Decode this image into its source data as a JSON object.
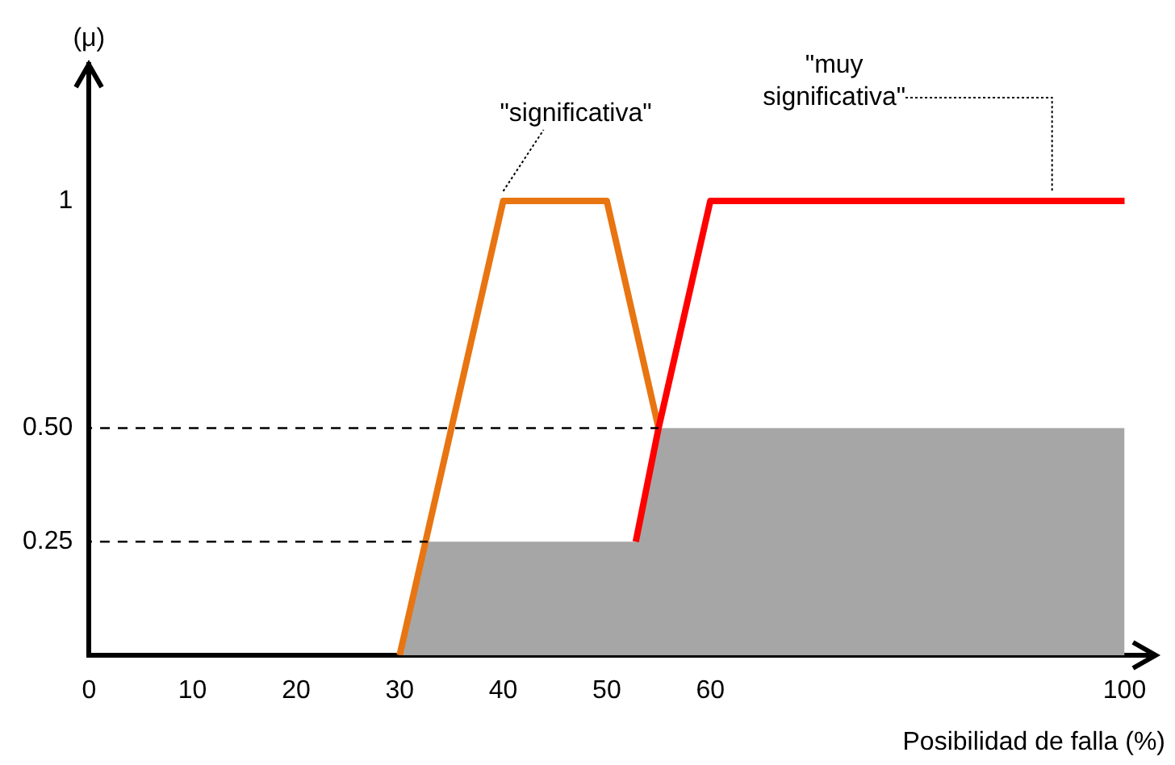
{
  "chart_data": {
    "type": "line",
    "xlabel": "Posibilidad de falla (%)",
    "ylabel": "(μ)",
    "xlim": [
      0,
      103
    ],
    "xticks": [
      0,
      10,
      20,
      30,
      40,
      50,
      60,
      100
    ],
    "ylim": [
      0,
      1.3
    ],
    "yticks": [
      {
        "value": 0.25,
        "label": "0.25"
      },
      {
        "value": 0.5,
        "label": "0.50"
      },
      1
    ],
    "grid": false,
    "legend": false,
    "marker": "none",
    "annotations": [
      {
        "text": "\"significativa\"",
        "x": 40,
        "y": 1
      },
      {
        "text": "\"muy\nsignificativa\"",
        "x": 93,
        "y": 1
      }
    ],
    "series": [
      {
        "type": "area",
        "color": "#a6a6a6",
        "x": [
          30,
          32.7,
          52.8,
          55,
          100
        ],
        "values": [
          0,
          0.25,
          0.25,
          0.5,
          0.5
        ]
      },
      {
        "color": "#e87511",
        "x": [
          30,
          40,
          50,
          55
        ],
        "values": [
          0,
          1,
          1,
          0.5
        ]
      },
      {
        "color": "#ff0000",
        "x": [
          52.8,
          55,
          60,
          100
        ],
        "values": [
          0.25,
          0.5,
          1,
          1
        ]
      },
      {
        "color": "#000000",
        "line_style": "dashed",
        "x": [
          0,
          32.7
        ],
        "values": [
          0.25,
          0.25
        ]
      },
      {
        "color": "#000000",
        "line_style": "dashed",
        "x": [
          0,
          55
        ],
        "values": [
          0.5,
          0.5
        ]
      }
    ]
  }
}
